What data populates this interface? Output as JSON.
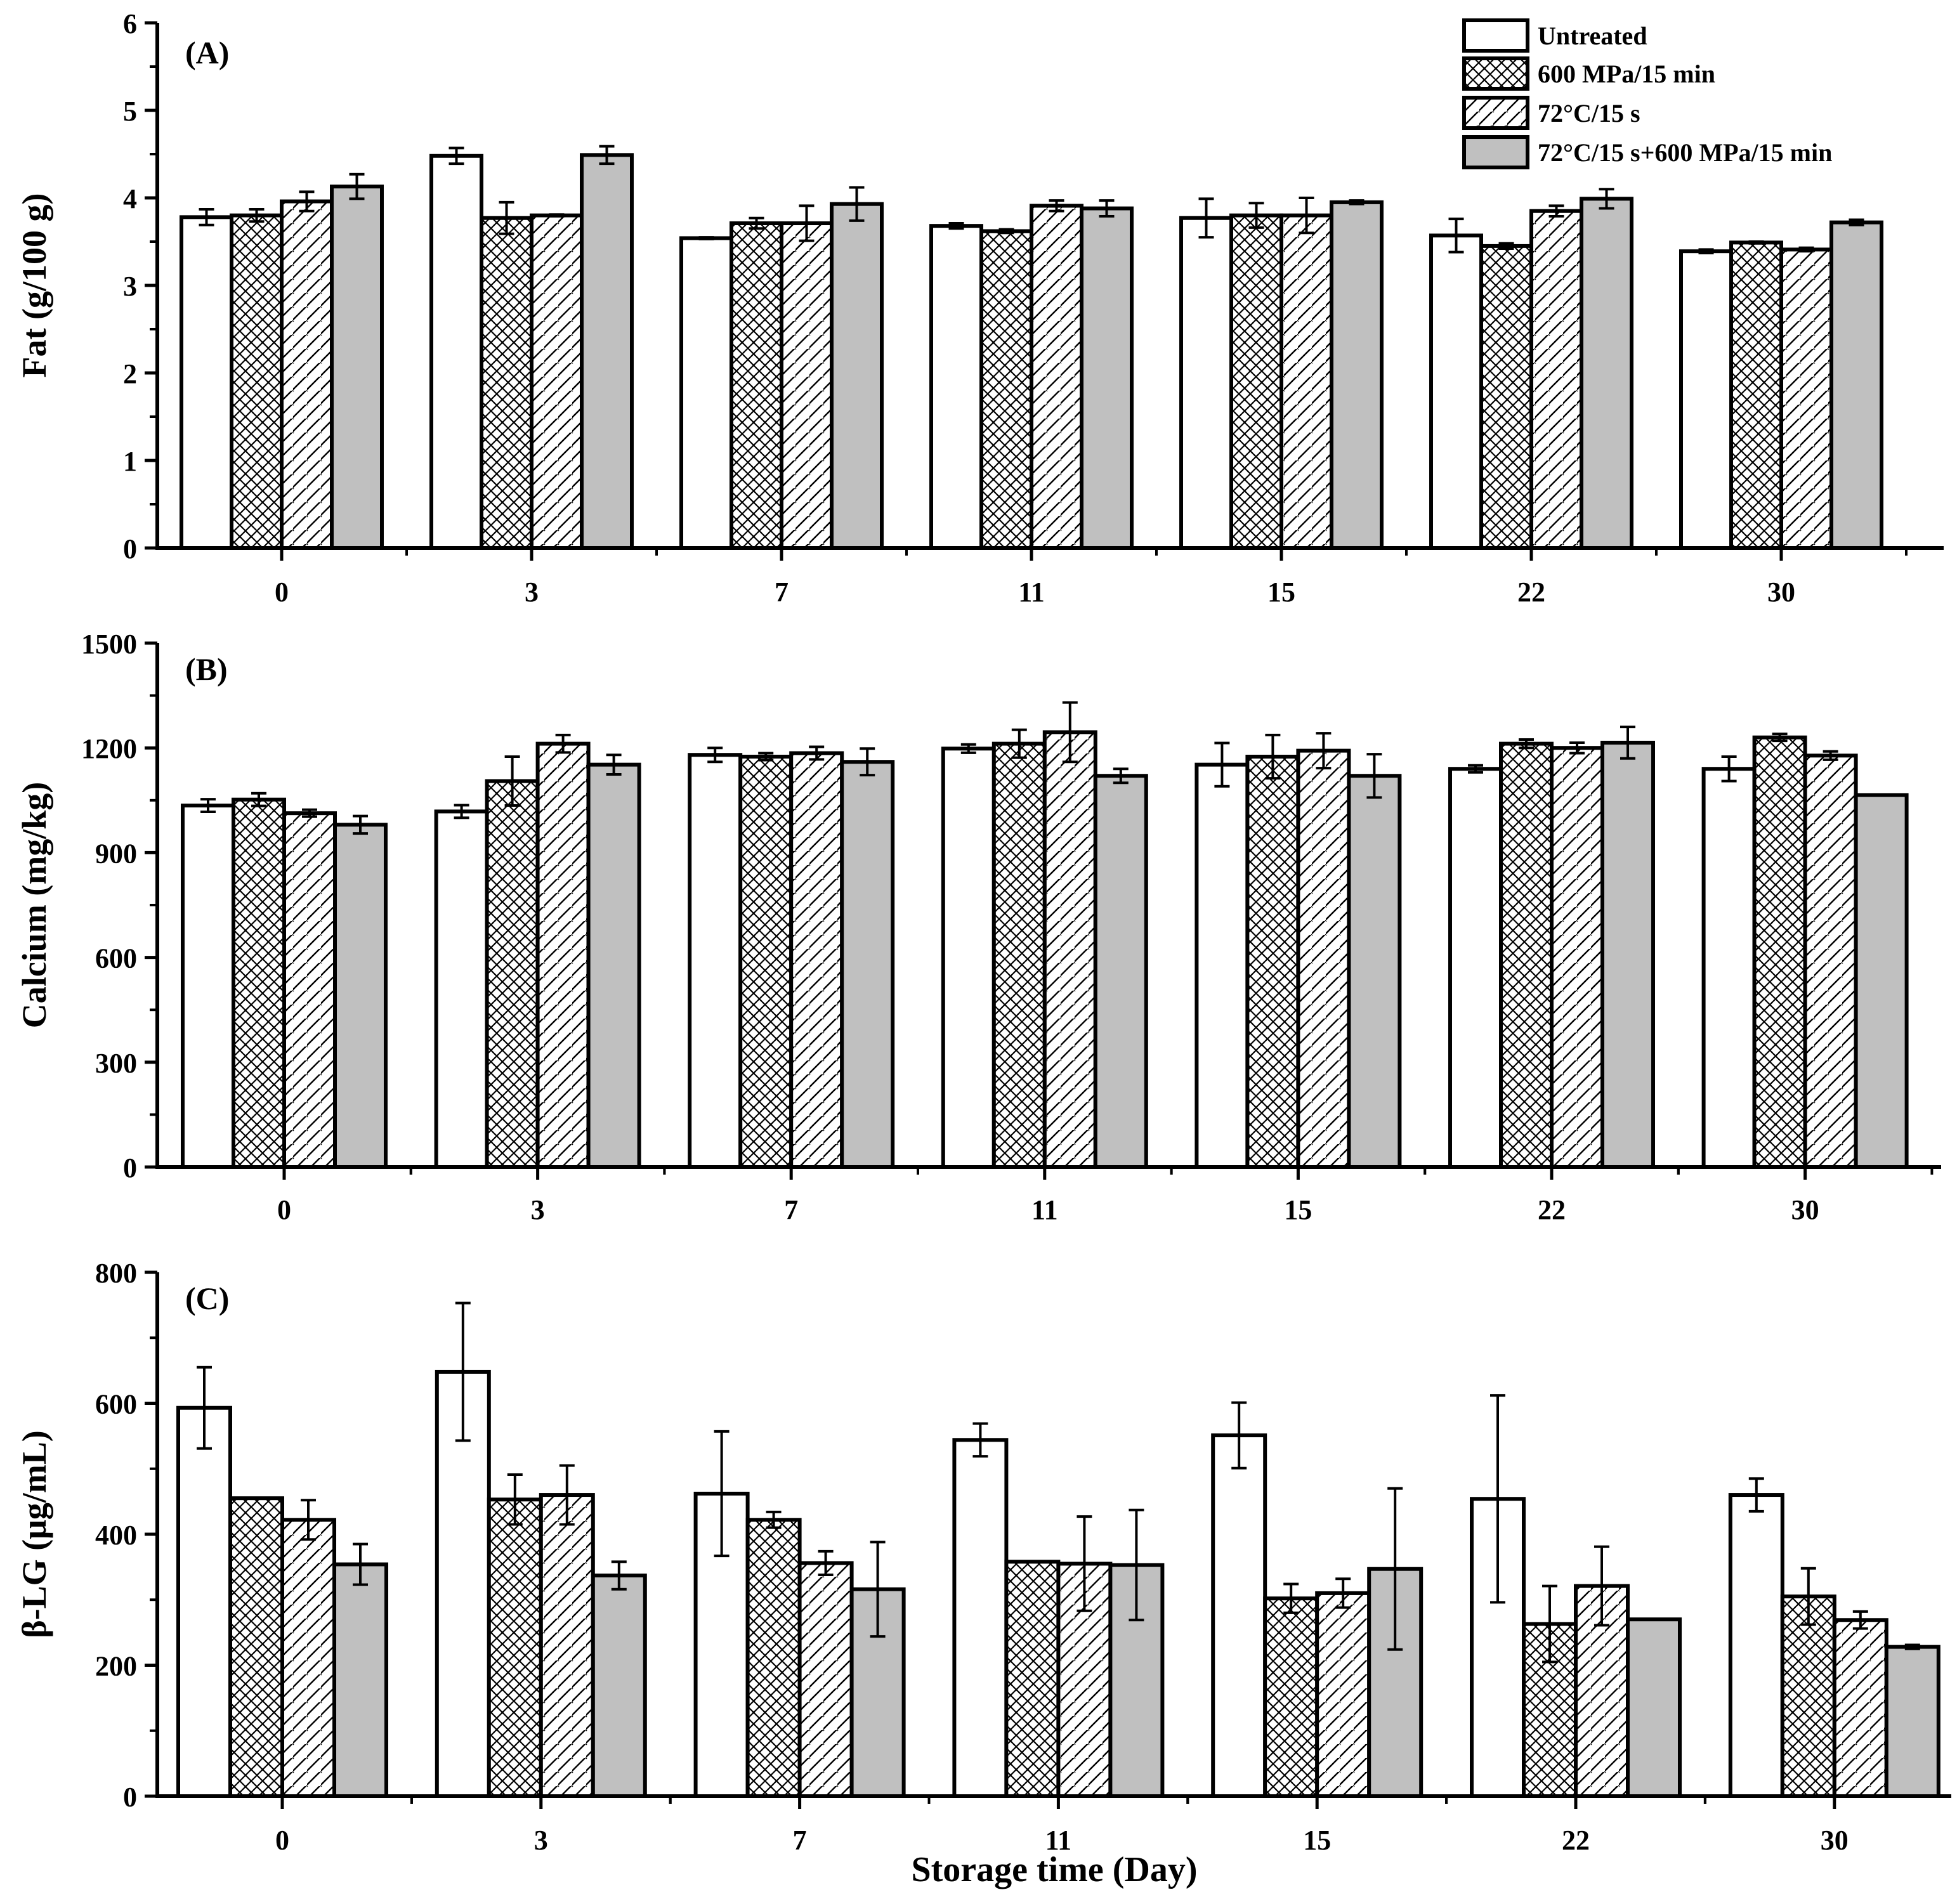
{
  "colors": {
    "background": "#ffffff",
    "outline": "#000000",
    "combo_fill": "#c0c0c0"
  },
  "chart_data": [
    {
      "type": "bar",
      "panel": "(A)",
      "title": "",
      "xlabel": "",
      "ylabel": "Fat (g/100 g)",
      "ylim": [
        0,
        6
      ],
      "yticks": [
        0,
        1,
        2,
        3,
        4,
        5,
        6
      ],
      "categories": [
        "0",
        "3",
        "7",
        "11",
        "15",
        "22",
        "30"
      ],
      "legend_position": "top-right",
      "series": [
        {
          "name": "Untreated",
          "values": [
            3.78,
            4.48,
            3.54,
            3.68,
            3.77,
            3.57,
            3.39
          ],
          "errors": [
            0.09,
            0.09,
            0.01,
            0.03,
            0.22,
            0.19,
            0.02
          ]
        },
        {
          "name": "600 MPa/15 min",
          "values": [
            3.8,
            3.77,
            3.71,
            3.62,
            3.8,
            3.45,
            3.49
          ],
          "errors": [
            0.07,
            0.18,
            0.06,
            0.02,
            0.14,
            0.03,
            0.01
          ]
        },
        {
          "name": "72°C/15 s",
          "values": [
            3.96,
            3.8,
            3.71,
            3.91,
            3.8,
            3.85,
            3.41
          ],
          "errors": [
            0.11,
            0.01,
            0.2,
            0.06,
            0.2,
            0.06,
            0.02
          ]
        },
        {
          "name": "72°C/15 s+600 MPa/15 min",
          "values": [
            4.13,
            4.49,
            3.93,
            3.88,
            3.95,
            3.99,
            3.72
          ],
          "errors": [
            0.14,
            0.1,
            0.19,
            0.09,
            0.02,
            0.11,
            0.03
          ]
        }
      ]
    },
    {
      "type": "bar",
      "panel": "(B)",
      "title": "",
      "xlabel": "",
      "ylabel": "Calcium (mg/kg)",
      "ylim": [
        0,
        1500
      ],
      "yticks": [
        0,
        300,
        600,
        900,
        1200,
        1500
      ],
      "categories": [
        "0",
        "3",
        "7",
        "11",
        "15",
        "22",
        "30"
      ],
      "series": [
        {
          "name": "Untreated",
          "values": [
            1035,
            1018,
            1180,
            1198,
            1152,
            1140,
            1140
          ],
          "errors": [
            18,
            18,
            20,
            12,
            62,
            10,
            35
          ]
        },
        {
          "name": "600 MPa/15 min",
          "values": [
            1052,
            1105,
            1175,
            1212,
            1175,
            1212,
            1230
          ],
          "errors": [
            18,
            70,
            10,
            40,
            62,
            12,
            10
          ]
        },
        {
          "name": "72°C/15 s",
          "values": [
            1013,
            1212,
            1185,
            1245,
            1192,
            1200,
            1178
          ],
          "errors": [
            10,
            25,
            18,
            85,
            50,
            15,
            12
          ]
        },
        {
          "name": "72°C/15 s+600 MPa/15 min",
          "values": [
            980,
            1152,
            1160,
            1120,
            1120,
            1215,
            1065
          ],
          "errors": [
            25,
            28,
            38,
            20,
            62,
            45,
            0
          ]
        }
      ]
    },
    {
      "type": "bar",
      "panel": "(C)",
      "title": "",
      "xlabel": "Storage time (Day)",
      "ylabel": "β-LG (μg/mL)",
      "ylim": [
        0,
        800
      ],
      "yticks": [
        0,
        200,
        400,
        600,
        800
      ],
      "categories": [
        "0",
        "3",
        "7",
        "11",
        "15",
        "22",
        "30"
      ],
      "series": [
        {
          "name": "Untreated",
          "values": [
            593,
            648,
            462,
            544,
            551,
            454,
            460
          ],
          "errors": [
            62,
            105,
            95,
            25,
            50,
            158,
            25
          ]
        },
        {
          "name": "600 MPa/15 min",
          "values": [
            455,
            453,
            422,
            358,
            302,
            263,
            305
          ],
          "errors": [
            0,
            38,
            12,
            0,
            22,
            58,
            43
          ]
        },
        {
          "name": "72°C/15 s",
          "values": [
            422,
            460,
            356,
            355,
            310,
            321,
            269
          ],
          "errors": [
            30,
            45,
            18,
            72,
            22,
            60,
            13
          ]
        },
        {
          "name": "72°C/15 s+600 MPa/15 min",
          "values": [
            354,
            337,
            316,
            353,
            347,
            270,
            228
          ],
          "errors": [
            31,
            21,
            72,
            84,
            123,
            0,
            3
          ]
        }
      ]
    }
  ]
}
